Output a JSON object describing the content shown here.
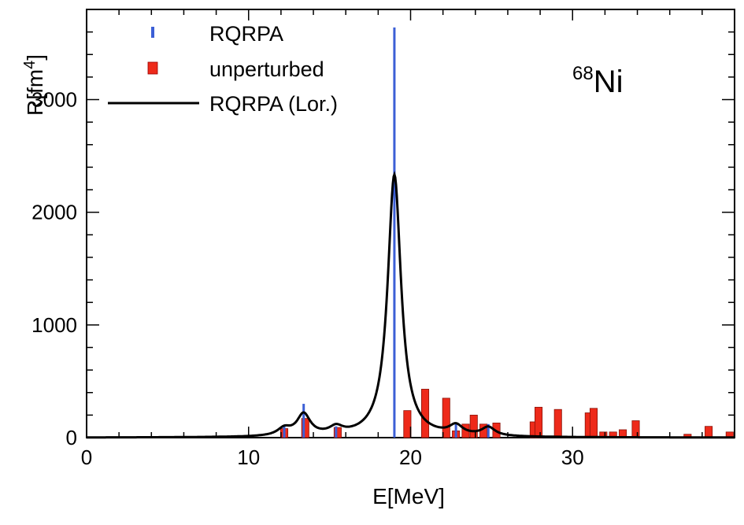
{
  "chart_data": {
    "type": "bar",
    "title": "",
    "annotation": {
      "mass": "68",
      "element": "Ni"
    },
    "xlabel": "E[MeV]",
    "ylabel": "R[fm",
    "ylabel_superscript": "4",
    "ylabel_close": "]",
    "xlim": [
      0,
      40
    ],
    "ylim": [
      0,
      3800
    ],
    "xticks": [
      0,
      10,
      20,
      30
    ],
    "yticks": [
      0,
      1000,
      2000,
      3000
    ],
    "colors": {
      "rqrpa": "#3c5fd6",
      "unperturbed": "#ee2a1a",
      "lorentzian": "#000000"
    },
    "legend_position": "top-left",
    "series": [
      {
        "name": "RQRPA",
        "kind": "lines",
        "x": [
          12.2,
          13.4,
          15.4,
          19.0,
          22.8,
          24.8
        ],
        "values": [
          100,
          300,
          100,
          3640,
          130,
          120
        ]
      },
      {
        "name": "unperturbed",
        "kind": "bars",
        "width": 0.45,
        "x": [
          12.2,
          13.5,
          15.5,
          19.8,
          20.9,
          22.2,
          22.8,
          23.4,
          23.9,
          24.5,
          25.3,
          27.6,
          27.9,
          29.1,
          31.0,
          31.3,
          31.9,
          32.5,
          33.1,
          33.9,
          37.1,
          38.4,
          39.7
        ],
        "values": [
          80,
          170,
          90,
          240,
          430,
          350,
          60,
          120,
          200,
          120,
          130,
          140,
          270,
          250,
          220,
          260,
          50,
          50,
          70,
          150,
          30,
          100,
          50
        ]
      },
      {
        "name": "RQRPA (Lor.)",
        "kind": "curve",
        "width_mev": 1.0,
        "positions": [
          12.2,
          13.4,
          15.4,
          19.0,
          22.8,
          24.8
        ],
        "strengths": [
          100,
          300,
          100,
          3640,
          130,
          120
        ]
      }
    ]
  }
}
